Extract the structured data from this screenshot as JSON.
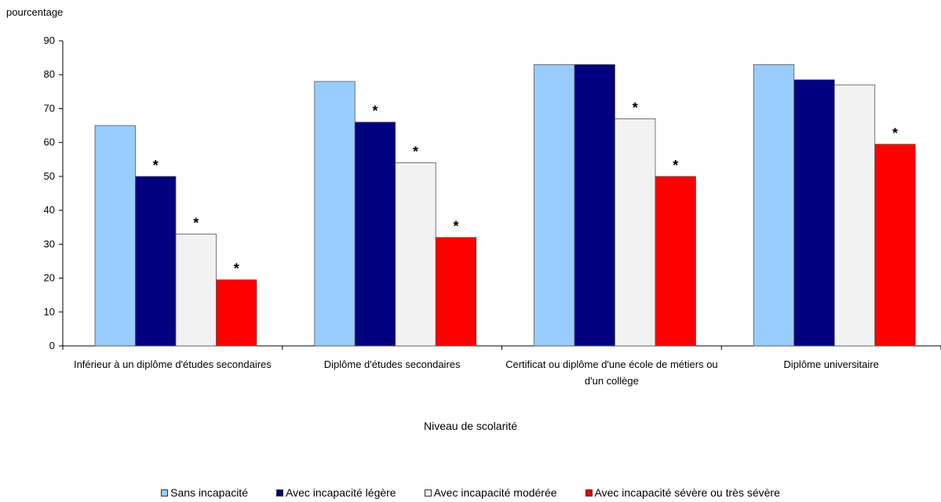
{
  "chart_data": {
    "type": "bar",
    "title": "",
    "ylabel": "pourcentage",
    "xlabel": "Niveau de scolarité",
    "ylim": [
      0,
      90
    ],
    "yticks": [
      0,
      10,
      20,
      30,
      40,
      50,
      60,
      70,
      80,
      90
    ],
    "grid": false,
    "legend_position": "bottom",
    "categories": [
      [
        "Inférieur à un diplôme d'études secondaires"
      ],
      [
        "Diplôme d'études secondaires"
      ],
      [
        "Certificat ou diplôme d'une école de métiers ou",
        "d'un collège"
      ],
      [
        "Diplôme universitaire"
      ]
    ],
    "series": [
      {
        "name": "Sans incapacité",
        "color": "#99ccff",
        "values": [
          65,
          78,
          83,
          83
        ],
        "marks": [
          "",
          "",
          "",
          ""
        ]
      },
      {
        "name": "Avec incapacité légère",
        "color": "#000080",
        "values": [
          50,
          66,
          83,
          78.5
        ],
        "marks": [
          "*",
          "*",
          "",
          ""
        ]
      },
      {
        "name": "Avec incapacité modérée",
        "color": "#f2f2f2",
        "values": [
          33,
          54,
          67,
          77
        ],
        "marks": [
          "*",
          "*",
          "*",
          ""
        ]
      },
      {
        "name": "Avec incapacité sévère ou très sévère",
        "color": "#ff0000",
        "values": [
          19.5,
          32,
          50,
          59.5
        ],
        "marks": [
          "*",
          "*",
          "*",
          "*"
        ]
      }
    ]
  }
}
